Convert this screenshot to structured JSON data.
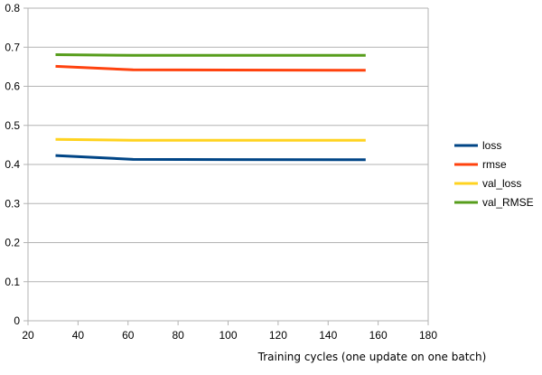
{
  "chart_data": {
    "type": "line",
    "title": "",
    "xlabel": "Training cycles (one update on one batch)",
    "ylabel": "",
    "xlim": [
      20,
      180
    ],
    "ylim": [
      0,
      0.8
    ],
    "x_ticks": [
      "20",
      "40",
      "60",
      "80",
      "100",
      "120",
      "140",
      "160",
      "180"
    ],
    "y_ticks": [
      "0",
      "0.1",
      "0.2",
      "0.3",
      "0.4",
      "0.5",
      "0.6",
      "0.7",
      "0.8"
    ],
    "x_tick_values": [
      20,
      40,
      60,
      80,
      100,
      120,
      140,
      160,
      180
    ],
    "y_tick_values": [
      0,
      0.1,
      0.2,
      0.3,
      0.4,
      0.5,
      0.6,
      0.7,
      0.8
    ],
    "grid": "horizontal",
    "legend_position": "right",
    "x": [
      31,
      62,
      155
    ],
    "series": [
      {
        "name": "loss",
        "color": "#004586",
        "values": [
          0.423,
          0.413,
          0.412
        ]
      },
      {
        "name": "rmse",
        "color": "#ff420e",
        "values": [
          0.651,
          0.642,
          0.641
        ]
      },
      {
        "name": "val_loss",
        "color": "#ffd320",
        "values": [
          0.464,
          0.462,
          0.462
        ]
      },
      {
        "name": "val_RMSE",
        "color": "#579d1c",
        "values": [
          0.681,
          0.679,
          0.679
        ]
      }
    ]
  }
}
